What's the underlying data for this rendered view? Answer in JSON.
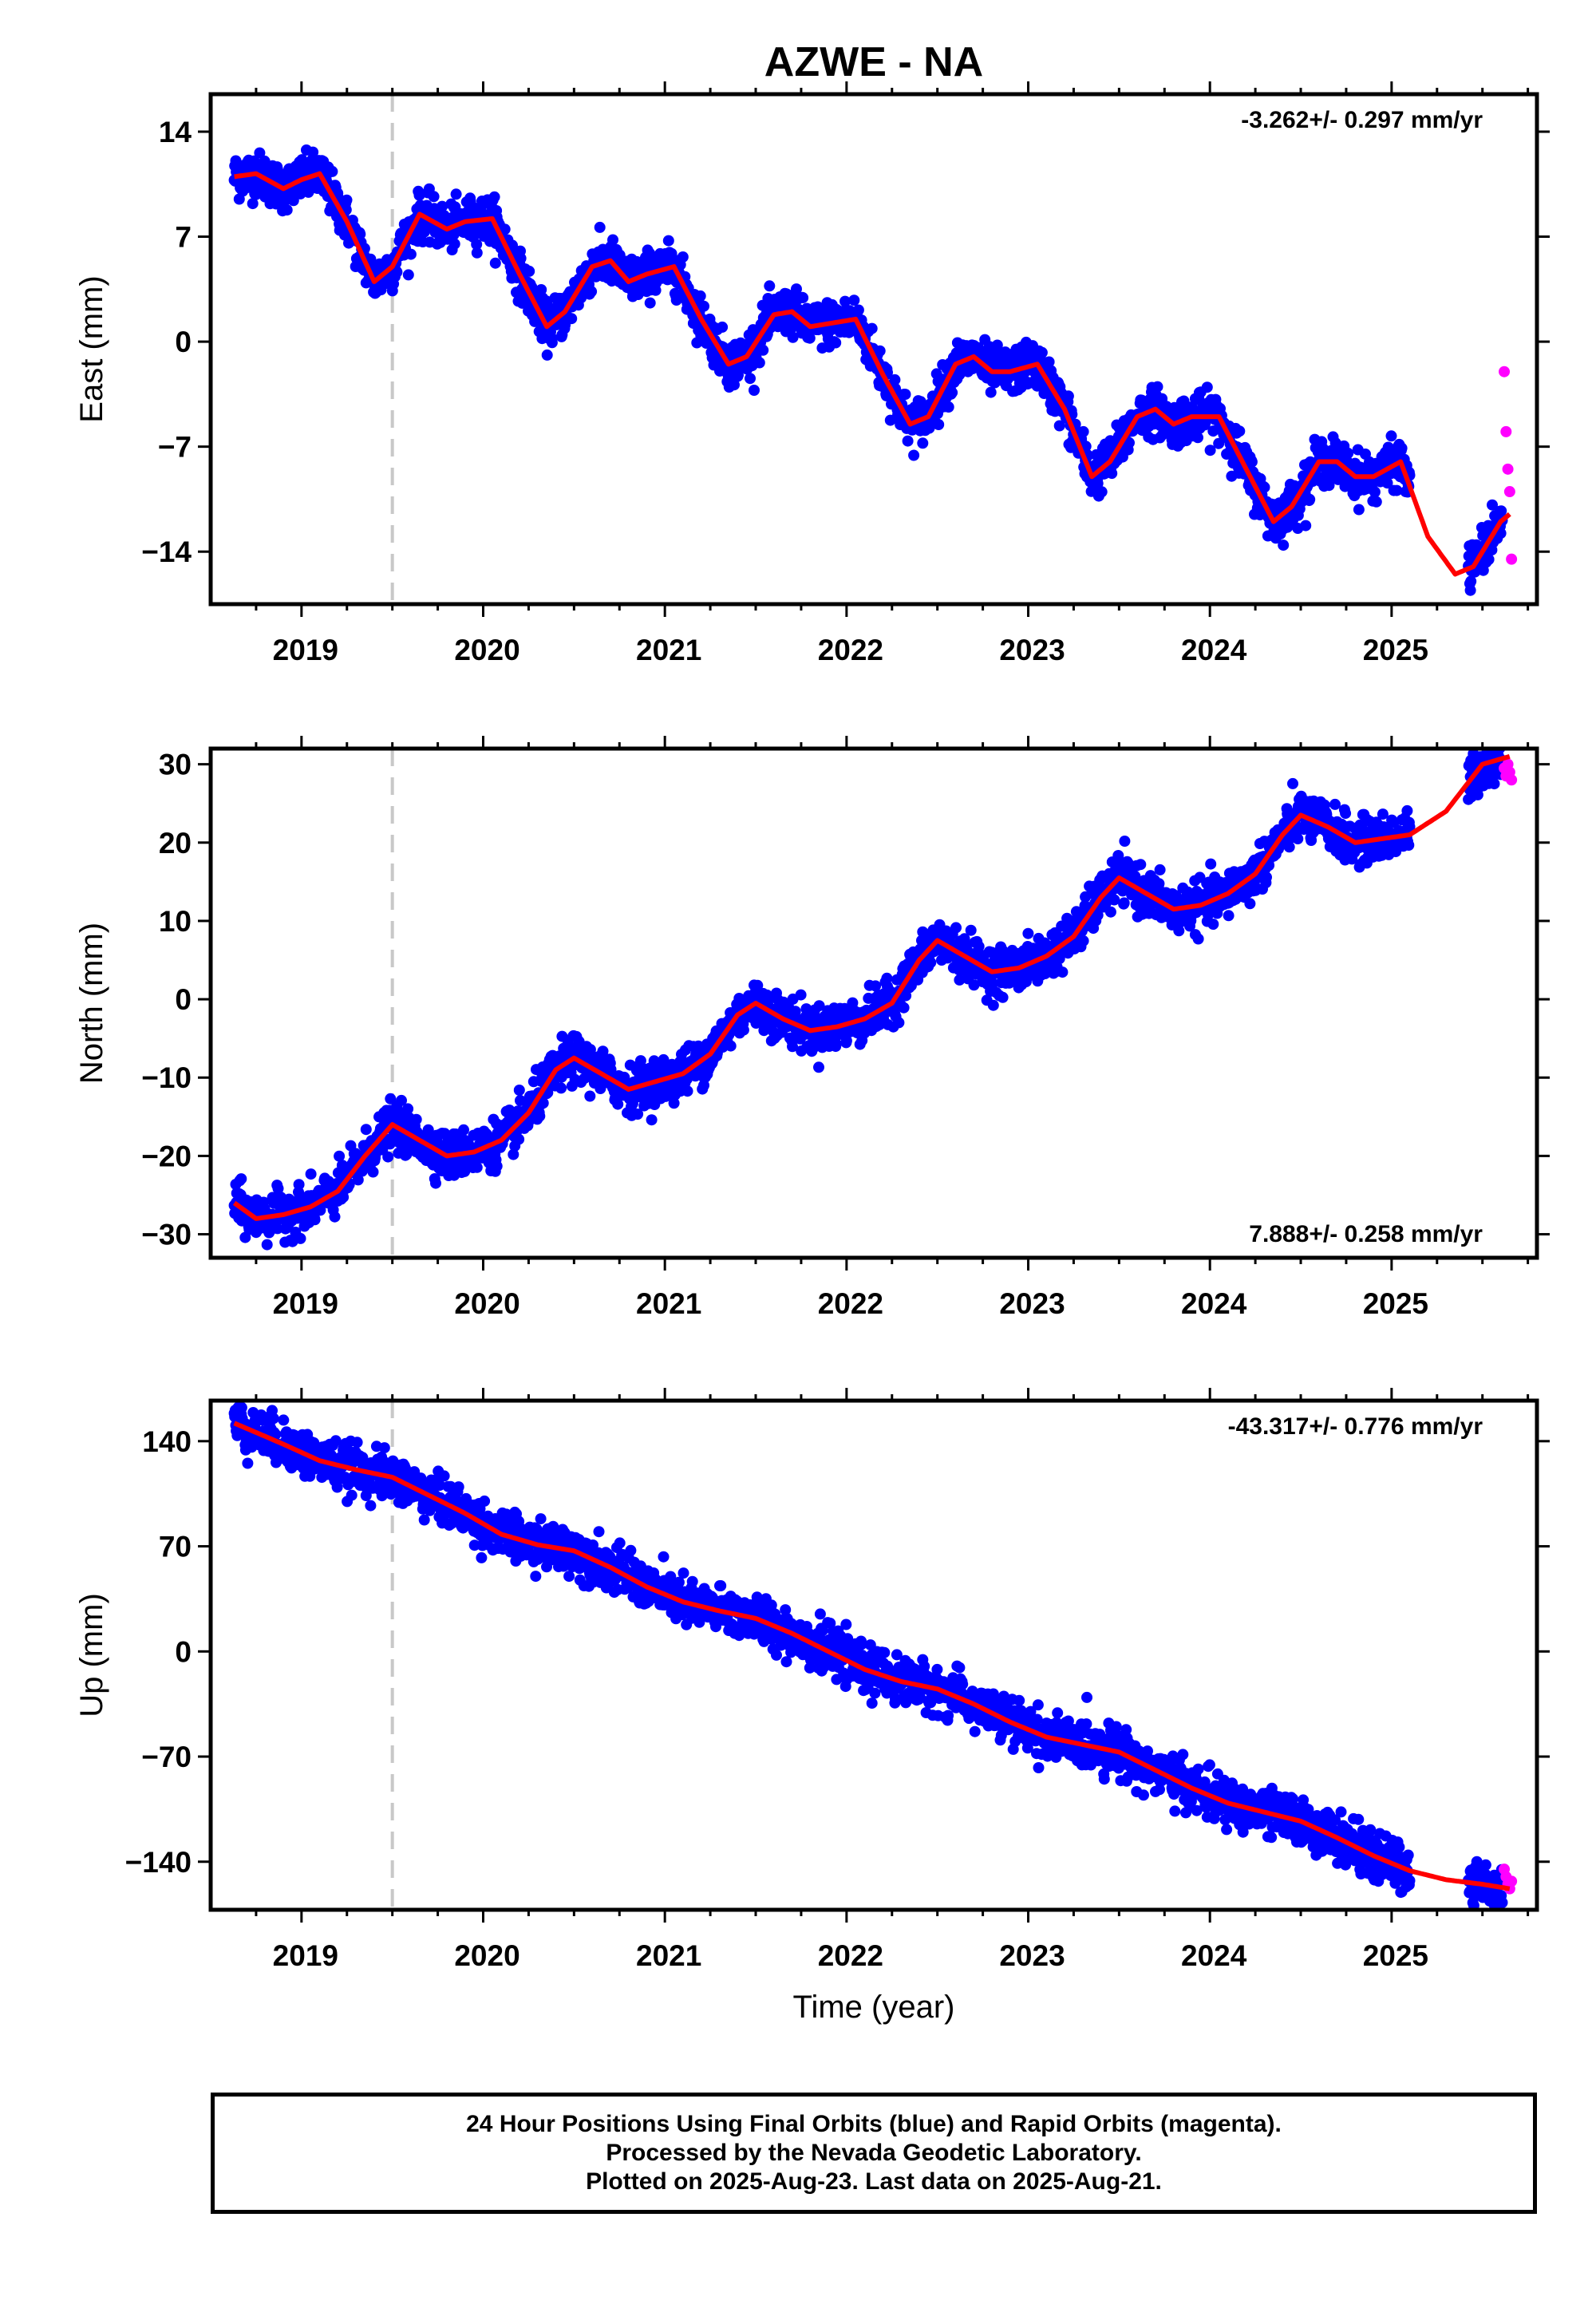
{
  "title": "AZWE - NA",
  "colors": {
    "final": "#0000ff",
    "rapid": "#ff00ff",
    "model": "#ff0000",
    "break_line": "#c8c8c8"
  },
  "footer": {
    "line1": "24 Hour Positions Using Final Orbits (blue) and Rapid Orbits (magenta).",
    "line2": "Processed by the Nevada Geodetic Laboratory.",
    "line3": "Plotted on 2025-Aug-23. Last data on 2025-Aug-21."
  },
  "chart_data": [
    {
      "type": "scatter",
      "component": "East",
      "ylabel": "East (mm)",
      "xlabel": "",
      "xlim": [
        2018.5,
        2025.8
      ],
      "ylim": [
        -17.5,
        16.5
      ],
      "yticks": [
        14,
        7,
        0,
        -7,
        -14
      ],
      "xticks": [
        2019,
        2020,
        2021,
        2022,
        2023,
        2024,
        2025
      ],
      "rate": "-3.262+/- 0.297 mm/yr",
      "rate_position": "top-right",
      "break_epoch": 2019.5,
      "grid": false,
      "model": {
        "x": [
          2018.63,
          2018.75,
          2018.9,
          2019.0,
          2019.1,
          2019.25,
          2019.4,
          2019.5,
          2019.65,
          2019.8,
          2019.9,
          2020.05,
          2020.2,
          2020.35,
          2020.45,
          2020.6,
          2020.7,
          2020.8,
          2020.9,
          2021.05,
          2021.2,
          2021.35,
          2021.45,
          2021.6,
          2021.7,
          2021.8,
          2021.9,
          2022.05,
          2022.2,
          2022.35,
          2022.45,
          2022.6,
          2022.7,
          2022.8,
          2022.9,
          2023.05,
          2023.2,
          2023.35,
          2023.45,
          2023.6,
          2023.7,
          2023.8,
          2023.9,
          2024.05,
          2024.2,
          2024.35,
          2024.45,
          2024.6,
          2024.7,
          2024.8,
          2024.9,
          2025.05,
          2025.2,
          2025.35,
          2025.45,
          2025.6,
          2025.65
        ],
        "y": [
          11,
          11.2,
          10.2,
          10.8,
          11.2,
          8,
          4,
          5,
          8.5,
          7.5,
          8,
          8.2,
          4.5,
          1,
          2,
          5,
          5.4,
          4,
          4.5,
          5,
          1.5,
          -1.5,
          -1,
          1.8,
          2,
          1,
          1.2,
          1.5,
          -2.2,
          -5.5,
          -5,
          -1.5,
          -1,
          -2,
          -2,
          -1.5,
          -4.5,
          -9,
          -8,
          -5,
          -4.5,
          -5.5,
          -5,
          -5,
          -8.5,
          -12,
          -11,
          -8,
          -8,
          -9,
          -9,
          -8,
          -13,
          -15.5,
          -15,
          -12,
          -11.5
        ]
      },
      "rapid": {
        "x": [
          2025.62,
          2025.63,
          2025.64,
          2025.65,
          2025.66
        ],
        "y": [
          -2,
          -6,
          -8.5,
          -10,
          -14.5
        ]
      }
    },
    {
      "type": "scatter",
      "component": "North",
      "ylabel": "North (mm)",
      "xlabel": "",
      "xlim": [
        2018.5,
        2025.8
      ],
      "ylim": [
        -33,
        32
      ],
      "yticks": [
        30,
        20,
        10,
        0,
        -10,
        -20,
        -30
      ],
      "xticks": [
        2019,
        2020,
        2021,
        2022,
        2023,
        2024,
        2025
      ],
      "rate": "7.888+/- 0.258 mm/yr",
      "rate_position": "bottom-right",
      "break_epoch": 2019.5,
      "grid": false,
      "model": {
        "x": [
          2018.63,
          2018.75,
          2018.9,
          2019.05,
          2019.2,
          2019.35,
          2019.5,
          2019.65,
          2019.8,
          2019.95,
          2020.1,
          2020.25,
          2020.4,
          2020.5,
          2020.65,
          2020.8,
          2020.95,
          2021.1,
          2021.25,
          2021.4,
          2021.5,
          2021.65,
          2021.8,
          2021.95,
          2022.1,
          2022.25,
          2022.4,
          2022.5,
          2022.65,
          2022.8,
          2022.95,
          2023.1,
          2023.25,
          2023.4,
          2023.5,
          2023.65,
          2023.8,
          2023.95,
          2024.1,
          2024.25,
          2024.4,
          2024.5,
          2024.65,
          2024.8,
          2024.95,
          2025.1,
          2025.3,
          2025.5,
          2025.65
        ],
        "y": [
          -26,
          -28,
          -27.5,
          -26.5,
          -24.5,
          -20,
          -16,
          -18,
          -20,
          -19.5,
          -18,
          -14.5,
          -9,
          -7.5,
          -9.5,
          -11.5,
          -10.5,
          -9.5,
          -7,
          -2,
          -0.5,
          -2.5,
          -4,
          -3.5,
          -2.5,
          -0.5,
          5,
          7.5,
          5.5,
          3.5,
          4,
          5.5,
          8,
          13,
          15.5,
          13.5,
          11.5,
          12,
          13.5,
          16,
          21,
          23.5,
          22,
          20,
          20.5,
          21,
          24,
          30,
          31
        ]
      },
      "rapid": {
        "x": [
          2025.62,
          2025.63,
          2025.64,
          2025.65,
          2025.66
        ],
        "y": [
          29.5,
          28.5,
          30,
          29,
          28
        ]
      }
    },
    {
      "type": "scatter",
      "component": "Up",
      "ylabel": "Up (mm)",
      "xlabel": "Time (year)",
      "xlim": [
        2018.5,
        2025.8
      ],
      "ylim": [
        -172,
        167
      ],
      "yticks": [
        140,
        70,
        0,
        -70,
        -140
      ],
      "xticks": [
        2019,
        2020,
        2021,
        2022,
        2023,
        2024,
        2025
      ],
      "rate": "-43.317+/- 0.776 mm/yr",
      "rate_position": "top-right",
      "break_epoch": 2019.5,
      "grid": false,
      "model": {
        "x": [
          2018.63,
          2018.9,
          2019.1,
          2019.3,
          2019.5,
          2019.7,
          2019.9,
          2020.1,
          2020.3,
          2020.5,
          2020.7,
          2020.9,
          2021.1,
          2021.3,
          2021.5,
          2021.7,
          2021.9,
          2022.1,
          2022.3,
          2022.5,
          2022.7,
          2022.9,
          2023.1,
          2023.3,
          2023.5,
          2023.7,
          2023.9,
          2024.1,
          2024.3,
          2024.5,
          2024.7,
          2024.9,
          2025.1,
          2025.3,
          2025.5,
          2025.65
        ],
        "y": [
          152,
          138,
          127,
          121,
          116,
          104,
          92,
          78,
          71,
          67,
          56,
          43,
          33,
          27,
          22,
          12,
          0,
          -12,
          -20,
          -25,
          -35,
          -47,
          -57,
          -62,
          -67,
          -79,
          -91,
          -101,
          -107,
          -113,
          -124,
          -136,
          -146,
          -152,
          -155,
          -158
        ]
      },
      "rapid": {
        "x": [
          2025.62,
          2025.63,
          2025.64,
          2025.65,
          2025.66
        ],
        "y": [
          -145,
          -150,
          -155,
          -158,
          -153
        ]
      }
    }
  ]
}
